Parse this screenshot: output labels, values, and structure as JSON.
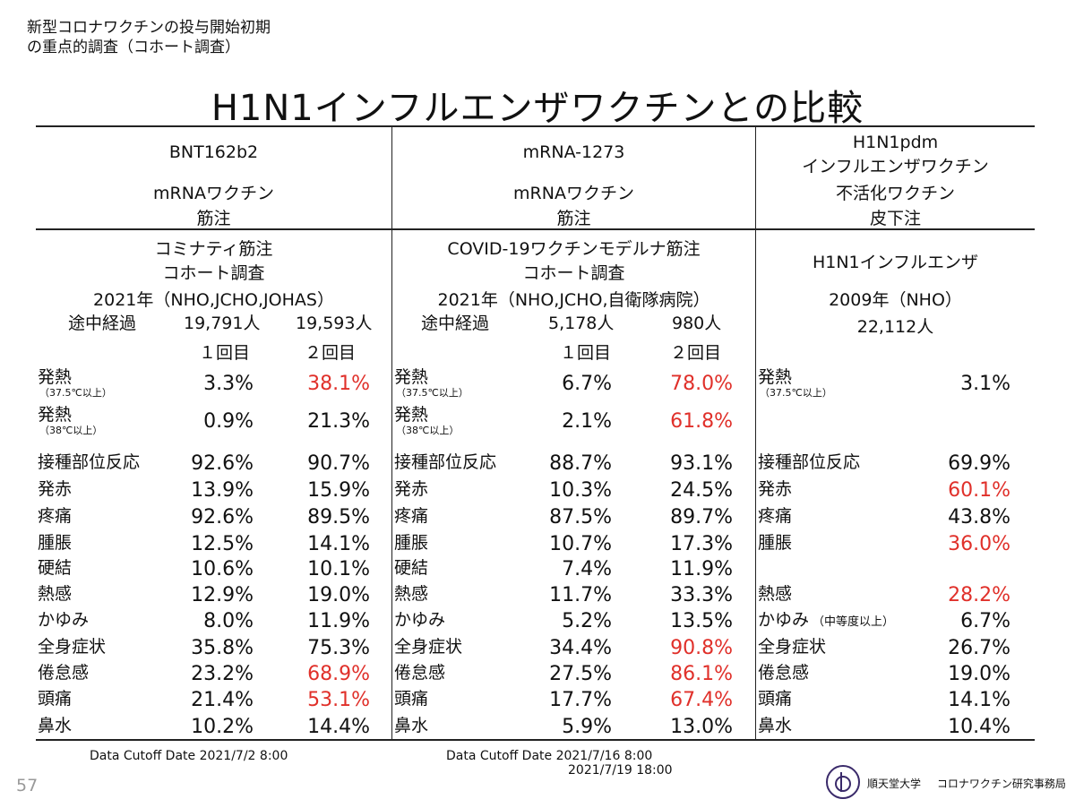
{
  "slide": {
    "subtitle_line1": "新型コロナワクチンの投与開始初期",
    "subtitle_line2": "の重点的調査（コホート調査）",
    "title": "H1N1インフルエンザワクチンとの比較",
    "page_number": "57",
    "brand_university": "順天堂大学",
    "brand_office": "コロナワクチン研究事務局"
  },
  "columns": [
    {
      "header": [
        "BNT162b2",
        "mRNAワクチン",
        "筋注"
      ],
      "study": [
        "コミナティ筋注",
        "コホート調査"
      ],
      "year": "2021年（NHO,JCHO,JOHAS）",
      "interim": "途中経過",
      "n1": "19,791人",
      "n2": "19,593人",
      "dose1": "１回目",
      "dose2": "２回目"
    },
    {
      "header": [
        "mRNA-1273",
        "mRNAワクチン",
        "筋注"
      ],
      "study": [
        "COVID-19ワクチンモデルナ筋注",
        "コホート調査"
      ],
      "year": "2021年（NHO,JCHO,自衛隊病院）",
      "interim": "途中経過",
      "n1": "5,178人",
      "n2": "980人",
      "dose1": "１回目",
      "dose2": "２回目"
    },
    {
      "header": [
        "H1N1pdm",
        "インフルエンザワクチン",
        "不活化ワクチン",
        "皮下注"
      ],
      "study": [
        "H1N1インフルエンザ"
      ],
      "year": "2009年（NHO）",
      "n": "22,112人"
    }
  ],
  "rows": [
    {
      "label": "発熱",
      "sub": "（37.5℃以上）",
      "bnt": [
        "3.3%",
        "38.1%"
      ],
      "bnt_red": [
        false,
        true
      ],
      "mod": [
        "6.7%",
        "78.0%"
      ],
      "mod_red": [
        false,
        true
      ],
      "h1_label": "発熱",
      "h1_sub": "（37.5℃以上）",
      "h1": "3.1%",
      "h1_red": false
    },
    {
      "label": "発熱",
      "sub": "（38℃以上）",
      "bnt": [
        "0.9%",
        "21.3%"
      ],
      "bnt_red": [
        false,
        false
      ],
      "mod": [
        "2.1%",
        "61.8%"
      ],
      "mod_red": [
        false,
        true
      ],
      "h1_label": "",
      "h1": "",
      "h1_red": false
    },
    {
      "label": "接種部位反応",
      "bnt": [
        "92.6%",
        "90.7%"
      ],
      "bnt_red": [
        false,
        false
      ],
      "mod": [
        "88.7%",
        "93.1%"
      ],
      "mod_red": [
        false,
        false
      ],
      "h1_label": "接種部位反応",
      "h1": "69.9%",
      "h1_red": false
    },
    {
      "label": "発赤",
      "bnt": [
        "13.9%",
        "15.9%"
      ],
      "bnt_red": [
        false,
        false
      ],
      "mod": [
        "10.3%",
        "24.5%"
      ],
      "mod_red": [
        false,
        false
      ],
      "h1_label": "発赤",
      "h1": "60.1%",
      "h1_red": true
    },
    {
      "label": "疼痛",
      "bnt": [
        "92.6%",
        "89.5%"
      ],
      "bnt_red": [
        false,
        false
      ],
      "mod": [
        "87.5%",
        "89.7%"
      ],
      "mod_red": [
        false,
        false
      ],
      "h1_label": "疼痛",
      "h1": "43.8%",
      "h1_red": false
    },
    {
      "label": "腫脹",
      "bnt": [
        "12.5%",
        "14.1%"
      ],
      "bnt_red": [
        false,
        false
      ],
      "mod": [
        "10.7%",
        "17.3%"
      ],
      "mod_red": [
        false,
        false
      ],
      "h1_label": "腫脹",
      "h1": "36.0%",
      "h1_red": true
    },
    {
      "label": "硬結",
      "bnt": [
        "10.6%",
        "10.1%"
      ],
      "bnt_red": [
        false,
        false
      ],
      "mod": [
        "7.4%",
        "11.9%"
      ],
      "mod_red": [
        false,
        false
      ],
      "h1_label": "",
      "h1": "",
      "h1_red": false
    },
    {
      "label": "熱感",
      "bnt": [
        "12.9%",
        "19.0%"
      ],
      "bnt_red": [
        false,
        false
      ],
      "mod": [
        "11.7%",
        "33.3%"
      ],
      "mod_red": [
        false,
        false
      ],
      "h1_label": "熱感",
      "h1": "28.2%",
      "h1_red": true
    },
    {
      "label": "かゆみ",
      "bnt": [
        "8.0%",
        "11.9%"
      ],
      "bnt_red": [
        false,
        false
      ],
      "mod": [
        "5.2%",
        "13.5%"
      ],
      "mod_red": [
        false,
        false
      ],
      "h1_label": "かゆみ",
      "h1_note": "（中等度以上）",
      "h1": "6.7%",
      "h1_red": false
    },
    {
      "label": "全身症状",
      "bnt": [
        "35.8%",
        "75.3%"
      ],
      "bnt_red": [
        false,
        false
      ],
      "mod": [
        "34.4%",
        "90.8%"
      ],
      "mod_red": [
        false,
        true
      ],
      "h1_label": "全身症状",
      "h1": "26.7%",
      "h1_red": false
    },
    {
      "label": "倦怠感",
      "bnt": [
        "23.2%",
        "68.9%"
      ],
      "bnt_red": [
        false,
        true
      ],
      "mod": [
        "27.5%",
        "86.1%"
      ],
      "mod_red": [
        false,
        true
      ],
      "h1_label": "倦怠感",
      "h1": "19.0%",
      "h1_red": false
    },
    {
      "label": "頭痛",
      "bnt": [
        "21.4%",
        "53.1%"
      ],
      "bnt_red": [
        false,
        true
      ],
      "mod": [
        "17.7%",
        "67.4%"
      ],
      "mod_red": [
        false,
        true
      ],
      "h1_label": "頭痛",
      "h1": "14.1%",
      "h1_red": false
    },
    {
      "label": "鼻水",
      "bnt": [
        "10.2%",
        "14.4%"
      ],
      "bnt_red": [
        false,
        false
      ],
      "mod": [
        "5.9%",
        "13.0%"
      ],
      "mod_red": [
        false,
        false
      ],
      "h1_label": "鼻水",
      "h1": "10.4%",
      "h1_red": false
    }
  ],
  "footnotes": {
    "bnt_cutoff": "Data Cutoff Date 2021/7/2 8:00",
    "mod_cutoff_1": "Data Cutoff Date 2021/7/16 8:00",
    "mod_cutoff_2": "2021/7/19 18:00"
  },
  "colors": {
    "highlight": "#e0302a",
    "text": "#111111"
  }
}
